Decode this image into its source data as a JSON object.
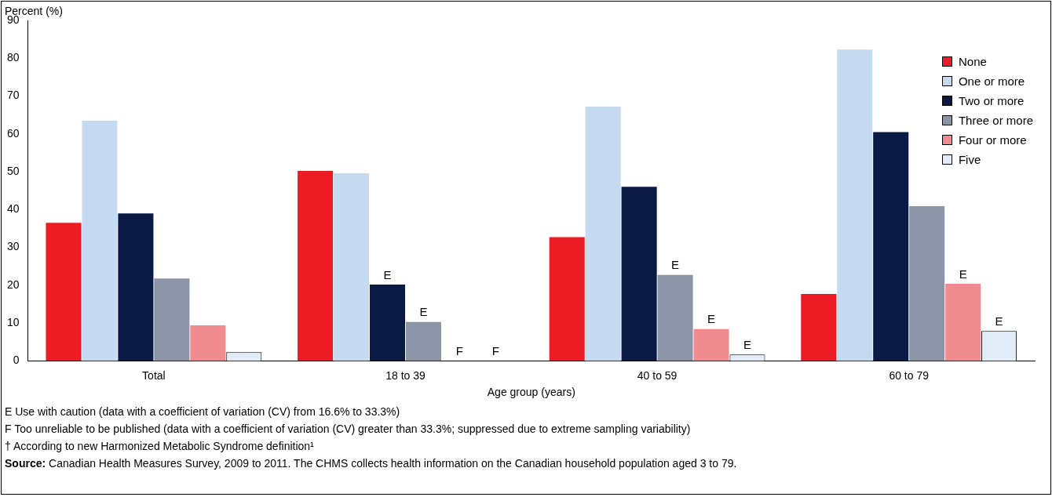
{
  "chart_data": {
    "type": "bar",
    "ylabel": "Percent (%)",
    "xlabel": "Age group (years)",
    "categories": [
      "Total",
      "18 to 39",
      "40 to 59",
      "60 to 79"
    ],
    "series": [
      {
        "name": "None",
        "color": "#ed1c24",
        "values": [
          36.5,
          50.2,
          32.7,
          17.7
        ]
      },
      {
        "name": "One or more",
        "color": "#c5d9f1",
        "values": [
          63.5,
          49.6,
          67.2,
          82.3
        ]
      },
      {
        "name": "Two or more",
        "color": "#0b1a44",
        "values": [
          39,
          20.2,
          46,
          60.5
        ],
        "value_labels": [
          null,
          "E",
          null,
          null
        ]
      },
      {
        "name": "Three or more",
        "color": "#8c94a8",
        "values": [
          21.8,
          10.3,
          22.7,
          40.9
        ],
        "value_labels": [
          null,
          "E",
          "E",
          null
        ]
      },
      {
        "name": "Four or more",
        "color": "#f08c8f",
        "values": [
          9.4,
          null,
          8.4,
          20.4
        ],
        "value_labels": [
          null,
          "F",
          "E",
          "E"
        ]
      },
      {
        "name": "Five",
        "color": "#e2ecf8",
        "values": [
          2.3,
          null,
          1.7,
          7.9
        ],
        "value_labels": [
          null,
          "F",
          "E",
          "E"
        ]
      }
    ],
    "ylim": [
      0,
      90
    ],
    "yticks": [
      0,
      10,
      20,
      30,
      40,
      50,
      60,
      70,
      80,
      90
    ],
    "grid": false,
    "legend": "top right",
    "annotations": [
      "E  Use with caution (data with a coefficient of variation (CV) from 16.6% to 33.3%)",
      "F  Too unreliable to be published (data with a coefficient of variation (CV) greater than 33.3%; suppressed due to extreme sampling variability)",
      "†  According to new Harmonized Metabolic Syndrome definition¹",
      "Source:  Canadian Health Measures Survey, 2009 to 2011. The CHMS collects health information on the Canadian household population aged 3 to 79."
    ]
  }
}
